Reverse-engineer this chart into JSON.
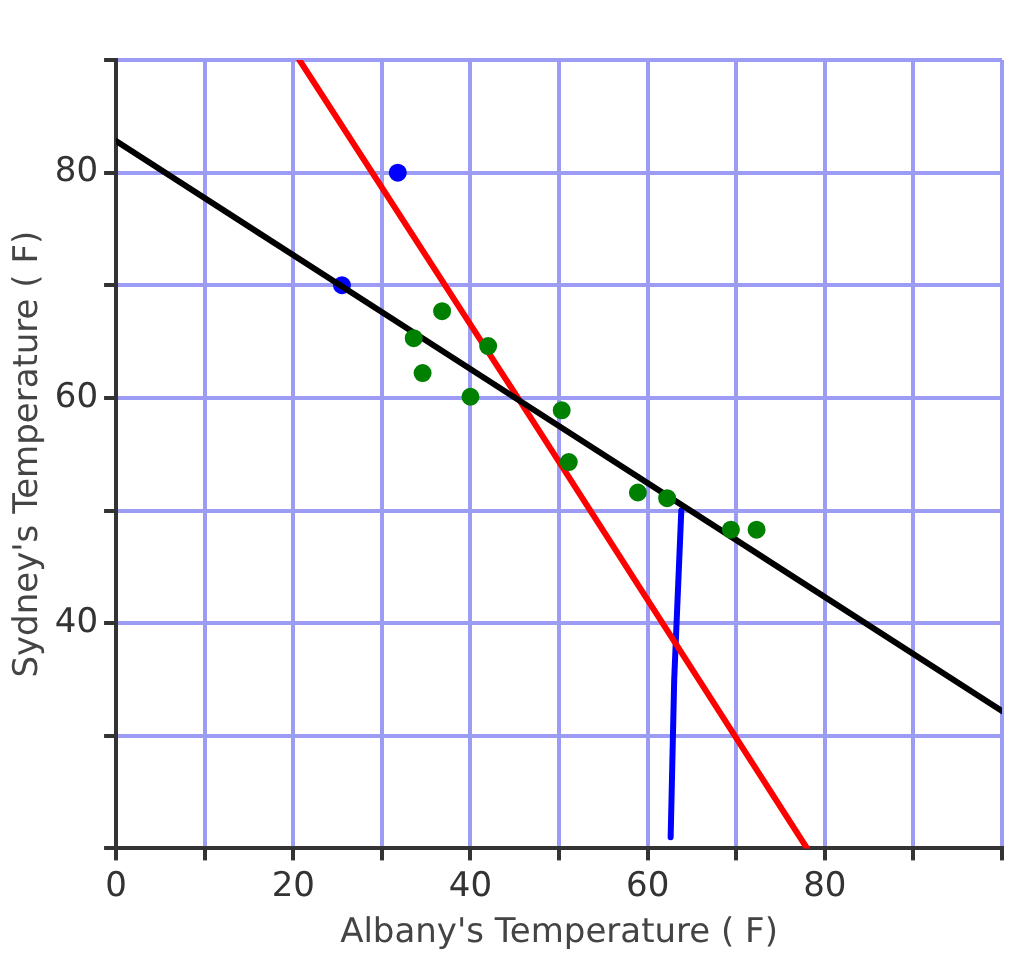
{
  "chart_data": {
    "type": "scatter",
    "xlabel": "Albany's Temperature ( F)",
    "ylabel": "Sydney's Temperature ( F)",
    "xlim": [
      0,
      100
    ],
    "ylim": [
      20,
      90
    ],
    "xticks": [
      0,
      {
        "value": 10,
        "label": null
      },
      20,
      {
        "value": 30,
        "label": null
      },
      40,
      {
        "value": 50,
        "label": null
      },
      60,
      {
        "value": 70,
        "label": null
      },
      80,
      {
        "value": 90,
        "label": null
      },
      {
        "value": 100,
        "label": null
      }
    ],
    "yticks": [
      {
        "value": 20,
        "label": null
      },
      {
        "value": 30,
        "label": null
      },
      40,
      {
        "value": 50,
        "label": null
      },
      60,
      {
        "value": 70,
        "label": null
      },
      80,
      {
        "value": 90,
        "label": null
      }
    ],
    "grid": true,
    "legend": false,
    "marker": "circle",
    "series": [
      {
        "type": "scatter",
        "color": "#008000",
        "x": [
          36.8,
          33.6,
          34.6,
          40,
          42,
          50.3,
          51.1,
          58.9,
          62.2,
          69.4,
          72.3
        ],
        "values": [
          67.7,
          65.3,
          62.2,
          60.1,
          64.6,
          58.9,
          54.3,
          51.6,
          51.1,
          48.3,
          48.3
        ]
      },
      {
        "type": "line",
        "color": "#000000",
        "marker": "none",
        "x": [
          0,
          100
        ],
        "values": [
          82.8,
          32.2
        ]
      },
      {
        "type": "line",
        "color": "#ff0000",
        "marker": "none",
        "x": [
          20.7,
          47,
          78
        ],
        "values": [
          90,
          58,
          20
        ]
      },
      {
        "type": "line",
        "color": "#0000ff",
        "marker": "none",
        "x": [
          62.6,
          63,
          63.8
        ],
        "values": [
          21,
          35,
          50
        ]
      },
      {
        "type": "scatter",
        "color": "#0000ff",
        "x": [
          25.5,
          31.8
        ],
        "values": [
          70,
          80
        ]
      }
    ]
  }
}
